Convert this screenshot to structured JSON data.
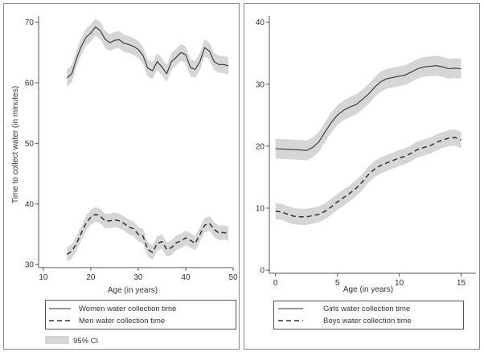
{
  "chart_data": [
    {
      "type": "line",
      "xlabel": "Age (in years)",
      "ylabel": "Time to collect water (in minutes)",
      "xlim": [
        9,
        50
      ],
      "ylim": [
        29.5,
        71
      ],
      "xticks": [
        10,
        20,
        30,
        40,
        50
      ],
      "yticks": [
        30,
        40,
        50,
        60,
        70
      ],
      "series": [
        {
          "name": "Women water collection time",
          "style": "solid",
          "x": [
            15,
            16,
            17,
            18,
            19,
            20,
            21,
            22,
            23,
            24,
            25,
            26,
            27,
            28,
            29,
            30,
            31,
            32,
            33,
            34,
            35,
            36,
            37,
            38,
            39,
            40,
            41,
            42,
            43,
            44,
            45,
            46,
            47,
            48,
            49
          ],
          "y": [
            60.8,
            61.5,
            64.0,
            66.0,
            67.5,
            68.2,
            69.2,
            68.6,
            67.2,
            66.6,
            67.0,
            67.1,
            66.5,
            66.3,
            66.0,
            65.5,
            64.5,
            62.4,
            62.0,
            63.5,
            62.6,
            61.5,
            63.5,
            64.2,
            65.0,
            64.6,
            62.5,
            62.2,
            63.5,
            65.8,
            65.2,
            63.5,
            63.0,
            63.0,
            62.8
          ],
          "ci": 1.4
        },
        {
          "name": "Men water collection time",
          "style": "dashed",
          "x": [
            15,
            16,
            17,
            18,
            19,
            20,
            21,
            22,
            23,
            24,
            25,
            26,
            27,
            28,
            29,
            30,
            31,
            32,
            33,
            34,
            35,
            36,
            37,
            38,
            39,
            40,
            41,
            42,
            43,
            44,
            45,
            46,
            47,
            48,
            49
          ],
          "y": [
            31.7,
            32.2,
            33.5,
            35.2,
            36.8,
            37.8,
            38.3,
            38.0,
            37.2,
            37.2,
            37.4,
            37.2,
            36.8,
            36.2,
            35.9,
            35.0,
            34.7,
            32.5,
            32.0,
            33.5,
            33.8,
            32.5,
            32.8,
            33.6,
            33.9,
            34.4,
            34.0,
            33.5,
            35.0,
            36.5,
            36.8,
            35.8,
            35.2,
            35.3,
            35.1
          ],
          "ci": 1.2
        }
      ],
      "legend": [
        "Women water collection time",
        "Men water collection time",
        "95% CI"
      ]
    },
    {
      "type": "line",
      "xlabel": "Age (in years)",
      "ylabel": "",
      "xlim": [
        -0.5,
        16.2
      ],
      "ylim": [
        -0.5,
        41
      ],
      "xticks": [
        0,
        5,
        10,
        15
      ],
      "yticks": [
        0,
        10,
        20,
        30,
        40
      ],
      "series": [
        {
          "name": "Girls water collection time",
          "style": "solid",
          "x": [
            0,
            1,
            2,
            2.5,
            3,
            3.5,
            4,
            4.5,
            5,
            5.5,
            6,
            6.5,
            7,
            7.5,
            8,
            8.5,
            9,
            9.5,
            10,
            10.5,
            11,
            11.5,
            12,
            12.5,
            13,
            13.5,
            14,
            14.5,
            15
          ],
          "y": [
            19.6,
            19.5,
            19.4,
            19.3,
            19.8,
            20.7,
            22.3,
            23.8,
            25.0,
            25.8,
            26.3,
            26.7,
            27.5,
            28.4,
            29.5,
            30.4,
            30.9,
            31.1,
            31.3,
            31.5,
            32.0,
            32.5,
            32.8,
            32.9,
            33.0,
            32.8,
            32.5,
            32.6,
            32.5
          ],
          "ci": 1.6
        },
        {
          "name": "Boys water collection time",
          "style": "dashed",
          "x": [
            0,
            0.5,
            1,
            1.5,
            2,
            2.5,
            3,
            3.5,
            4,
            4.5,
            5,
            5.5,
            6,
            6.5,
            7,
            7.5,
            8,
            8.5,
            9,
            9.5,
            10,
            10.5,
            11,
            11.5,
            12,
            12.5,
            13,
            13.5,
            14,
            14.5,
            15
          ],
          "y": [
            9.5,
            9.4,
            9.0,
            8.7,
            8.6,
            8.6,
            8.8,
            9.0,
            9.5,
            10.2,
            11.0,
            11.7,
            12.4,
            13.2,
            14.2,
            15.4,
            16.3,
            16.9,
            17.3,
            17.7,
            18.1,
            18.4,
            18.9,
            19.5,
            19.8,
            20.1,
            20.6,
            21.0,
            21.3,
            21.4,
            21.0
          ],
          "ci": 1.3
        }
      ],
      "legend": [
        "Girls water collection time",
        "Boys water collection time"
      ]
    }
  ],
  "style": {
    "line_color": "#333333",
    "ci_color": "#d6d6d6",
    "frame_color": "#8a8a8a"
  }
}
